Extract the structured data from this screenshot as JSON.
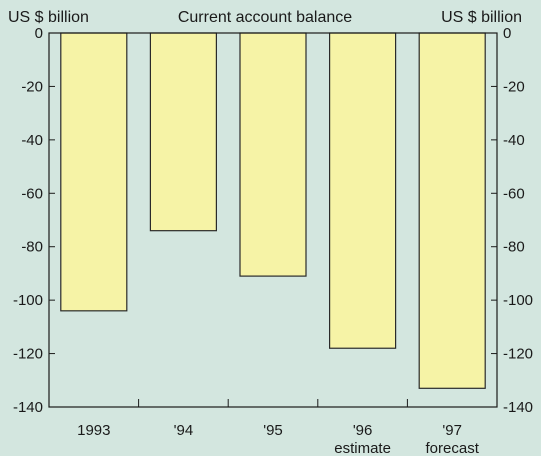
{
  "chart_data": {
    "type": "bar",
    "title": "Current account balance",
    "left_unit_label": "US $ billion",
    "right_unit_label": "US $ billion",
    "categories": [
      "1993",
      "'94",
      "'95",
      "'96",
      "'97"
    ],
    "category_sublabels": [
      "",
      "",
      "",
      "estimate",
      "forecast"
    ],
    "values": [
      -104,
      -74,
      -91,
      -118,
      -133
    ],
    "ylim": [
      -140,
      0
    ],
    "yticks": [
      0,
      -20,
      -40,
      -60,
      -80,
      -100,
      -120,
      -140
    ],
    "ytick_labels": [
      "0",
      "-20",
      "-40",
      "-60",
      "-80",
      "-100",
      "-120",
      "-140"
    ],
    "grid": false,
    "colors": {
      "bar_fill": "#f6f3a6",
      "bar_stroke": "#2a2a2a",
      "axis": "#1a1a1a",
      "background": "#d3e6df"
    }
  }
}
